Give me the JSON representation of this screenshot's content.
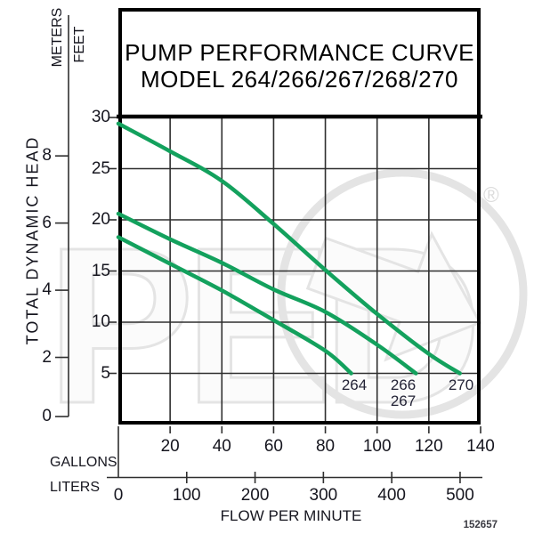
{
  "title": {
    "line1": "PUMP PERFORMANCE CURVE",
    "line2": "MODEL 264/266/267/268/270"
  },
  "y_axis": {
    "axis_label": "TOTAL DYNAMIC HEAD",
    "meters_label": "METERS",
    "feet_label": "FEET",
    "feet_ticks": [
      30,
      25,
      20,
      15,
      10,
      5
    ],
    "meters_ticks": [
      8,
      6,
      4,
      2,
      0
    ]
  },
  "x_axis": {
    "axis_label": "FLOW PER MINUTE",
    "gallons_label": "GALLONS",
    "liters_label": "LITERS",
    "gallons_ticks": [
      20,
      40,
      60,
      80,
      100,
      120,
      140
    ],
    "liters_ticks": [
      0,
      100,
      200,
      300,
      400,
      500
    ]
  },
  "footnote": "152657",
  "watermark": {
    "text": "PED",
    "registered": "®"
  },
  "colors": {
    "curve": "#13a15d",
    "grid": "#2f2f2f",
    "frame": "#000000",
    "text": "#16161f",
    "curve_label": "#232336",
    "watermark_stroke": "#e4e4e4",
    "watermark_fill": "#fbfbfb"
  },
  "chart_data": {
    "type": "line",
    "title": "PUMP PERFORMANCE CURVE MODEL 264/266/267/268/270",
    "xlabel": "FLOW PER MINUTE",
    "ylabel": "TOTAL DYNAMIC HEAD",
    "x_units_primary": "GALLONS",
    "x_units_secondary": "LITERS",
    "y_units_primary": "FEET",
    "y_units_secondary": "METERS",
    "xlim_gallons": [
      0,
      140
    ],
    "xlim_liters": [
      0,
      530
    ],
    "ylim_feet": [
      0,
      30
    ],
    "ylim_meters": [
      0,
      9.1
    ],
    "grid": true,
    "series": [
      {
        "name": "264",
        "points_gpm_ft": [
          [
            0,
            18.3
          ],
          [
            20,
            15.7
          ],
          [
            40,
            13.1
          ],
          [
            60,
            10.2
          ],
          [
            80,
            7.2
          ],
          [
            90,
            5.0
          ]
        ]
      },
      {
        "name": "266/267",
        "points_gpm_ft": [
          [
            0,
            20.6
          ],
          [
            20,
            18.1
          ],
          [
            40,
            15.8
          ],
          [
            60,
            13.2
          ],
          [
            80,
            11.0
          ],
          [
            100,
            7.8
          ],
          [
            115,
            5.0
          ]
        ]
      },
      {
        "name": "270",
        "points_gpm_ft": [
          [
            0,
            29.4
          ],
          [
            20,
            26.7
          ],
          [
            40,
            23.8
          ],
          [
            60,
            19.6
          ],
          [
            80,
            15.1
          ],
          [
            100,
            10.8
          ],
          [
            120,
            6.9
          ],
          [
            132,
            5.0
          ]
        ]
      }
    ],
    "curve_end_labels": [
      {
        "lines": [
          "264"
        ],
        "x_gal": 91
      },
      {
        "lines": [
          "266",
          "267"
        ],
        "x_gal": 110
      },
      {
        "lines": [
          "270"
        ],
        "x_gal": 132.5
      }
    ]
  }
}
